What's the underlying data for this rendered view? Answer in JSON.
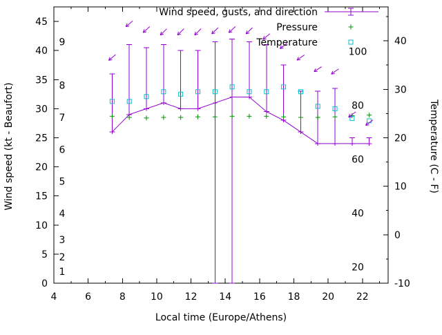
{
  "chart_data": {
    "type": "line",
    "title": "",
    "xlabel": "Local time (Europe/Athens)",
    "ylabel_left": "Wind speed (kt - Beaufort)",
    "ylabel_right": "Temperature (C - F)",
    "legend_position": "top-right-inside",
    "grid": false,
    "legend": [
      {
        "label": "Wind speed, gusts, and direction",
        "marker": "errorbar-line-plus",
        "color": "#9400d3"
      },
      {
        "label": "Pressure",
        "marker": "plus",
        "color": "#009000"
      },
      {
        "label": "Temperature",
        "marker": "open-square",
        "color": "#00c0c8"
      }
    ],
    "x_range": [
      4,
      23.5
    ],
    "x_ticks": [
      4,
      6,
      8,
      10,
      12,
      14,
      16,
      18,
      20,
      22
    ],
    "y_left_range_kt": [
      0,
      47.5
    ],
    "y_left_ticks_kt": [
      0,
      5,
      10,
      15,
      20,
      25,
      30,
      35,
      40,
      45
    ],
    "beaufort_labels": [
      {
        "label": "1",
        "kt": 2
      },
      {
        "label": "2",
        "kt": 4.5
      },
      {
        "label": "3",
        "kt": 7.5
      },
      {
        "label": "4",
        "kt": 12
      },
      {
        "label": "5",
        "kt": 17.5
      },
      {
        "label": "6",
        "kt": 23
      },
      {
        "label": "7",
        "kt": 28.5
      },
      {
        "label": "8",
        "kt": 34
      },
      {
        "label": "9",
        "kt": 41.5
      }
    ],
    "y_right_range_c": [
      -10,
      47
    ],
    "y_right_ticks_c": [
      -10,
      0,
      10,
      20,
      30,
      40
    ],
    "fahrenheit_labels": [
      20,
      40,
      60,
      80,
      100
    ],
    "x": [
      7.4,
      8.4,
      9.4,
      10.4,
      11.4,
      12.4,
      13.4,
      14.4,
      15.4,
      16.4,
      17.4,
      18.4,
      19.4,
      20.4,
      21.4,
      22.4
    ],
    "wind_speed_kt": [
      26,
      29,
      30,
      31,
      30,
      30,
      31,
      32,
      32,
      29.5,
      28,
      26,
      24,
      24,
      24,
      24
    ],
    "gust_kt": [
      36,
      41,
      40.5,
      41,
      40,
      40,
      41.5,
      42,
      41.5,
      41,
      37.5,
      33,
      33,
      33.5,
      25,
      25
    ],
    "errorbar_low_kt": [
      26,
      29,
      30,
      31,
      30,
      30,
      0,
      0,
      32,
      29.5,
      28,
      26,
      24,
      24,
      24,
      24
    ],
    "pressure_plotted_kt_axis": [
      28.7,
      28.5,
      28.4,
      28.5,
      28.5,
      28.6,
      28.6,
      28.7,
      28.7,
      28.7,
      28.6,
      28.5,
      28.5,
      28.6,
      28.8,
      28.9
    ],
    "temperature_c": [
      27.5,
      27.5,
      28.5,
      29.5,
      29,
      29.5,
      29.5,
      30.5,
      29.5,
      29.5,
      30.5,
      29.5,
      26.5,
      26,
      24,
      23.5
    ],
    "direction_arrows": [
      {
        "x": 7.4,
        "y_kt": 38.8,
        "angle_deg": 140
      },
      {
        "x": 8.4,
        "y_kt": 44.6,
        "angle_deg": 140
      },
      {
        "x": 9.4,
        "y_kt": 43.6,
        "angle_deg": 138
      },
      {
        "x": 10.4,
        "y_kt": 43.2,
        "angle_deg": 136
      },
      {
        "x": 11.4,
        "y_kt": 43.2,
        "angle_deg": 135
      },
      {
        "x": 12.4,
        "y_kt": 43.2,
        "angle_deg": 135
      },
      {
        "x": 13.4,
        "y_kt": 43.4,
        "angle_deg": 136
      },
      {
        "x": 14.4,
        "y_kt": 43.6,
        "angle_deg": 137
      },
      {
        "x": 15.4,
        "y_kt": 43.4,
        "angle_deg": 136
      },
      {
        "x": 16.4,
        "y_kt": 42.4,
        "angle_deg": 140
      },
      {
        "x": 17.4,
        "y_kt": 40.8,
        "angle_deg": 142
      },
      {
        "x": 18.4,
        "y_kt": 38.8,
        "angle_deg": 145
      },
      {
        "x": 19.4,
        "y_kt": 36.8,
        "angle_deg": 147
      },
      {
        "x": 20.4,
        "y_kt": 36.4,
        "angle_deg": 145
      },
      {
        "x": 21.4,
        "y_kt": 29.0,
        "angle_deg": 143
      },
      {
        "x": 22.4,
        "y_kt": 27.6,
        "angle_deg": 143
      }
    ],
    "colors": {
      "wind": "#9400d3",
      "pressure": "#009000",
      "temperature": "#00c0c8",
      "axis": "#000000",
      "background": "#ffffff"
    }
  }
}
